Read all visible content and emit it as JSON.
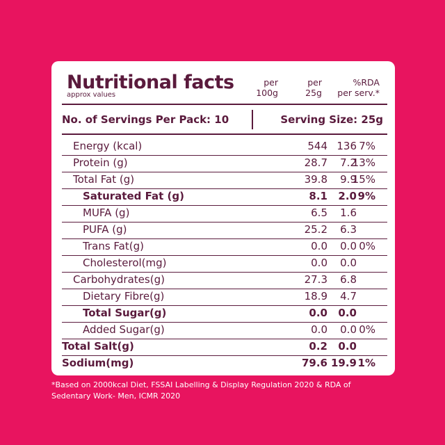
{
  "title": "Nutritional facts",
  "subtitle": "approx values",
  "columns": {
    "per100_line1": "per",
    "per100_line2": "100g",
    "per25_line1": "per",
    "per25_line2": "25g",
    "rda_line1": "%RDA",
    "rda_line2": "per serv.*"
  },
  "servings": {
    "per_pack": "No. of Servings Per Pack: 10",
    "serving_size": "Serving Size: 25g"
  },
  "rows": [
    {
      "name": "Energy (kcal)",
      "per100": "544",
      "per25": "136",
      "rda": "7%"
    },
    {
      "name": "Protein (g)",
      "per100": "28.7",
      "per25": "7.2",
      "rda": "13%"
    },
    {
      "name": "Total Fat (g)",
      "per100": "39.8",
      "per25": "9.9",
      "rda": "15%"
    },
    {
      "name": "Saturated Fat (g)",
      "per100": "8.1",
      "per25": "2.0",
      "rda": "9%"
    },
    {
      "name": "MUFA (g)",
      "per100": "6.5",
      "per25": "1.6",
      "rda": ""
    },
    {
      "name": "PUFA (g)",
      "per100": "25.2",
      "per25": "6.3",
      "rda": ""
    },
    {
      "name": "Trans Fat(g)",
      "per100": "0.0",
      "per25": "0.0",
      "rda": "0%"
    },
    {
      "name": "Cholesterol(mg)",
      "per100": "0.0",
      "per25": "0.0",
      "rda": ""
    },
    {
      "name": "Carbohydrates(g)",
      "per100": "27.3",
      "per25": "6.8",
      "rda": ""
    },
    {
      "name": "Dietary Fibre(g)",
      "per100": "18.9",
      "per25": "4.7",
      "rda": ""
    },
    {
      "name": "Total Sugar(g)",
      "per100": "0.0",
      "per25": "0.0",
      "rda": ""
    },
    {
      "name": "Added Sugar(g)",
      "per100": "0.0",
      "per25": "0.0",
      "rda": "0%"
    },
    {
      "name": "Total Salt(g)",
      "per100": "0.2",
      "per25": "0.0",
      "rda": ""
    },
    {
      "name": "Sodium(mg)",
      "per100": "79.6",
      "per25": "19.9",
      "rda": "1%"
    }
  ],
  "footnote": "*Based on 2000kcal Diet, FSSAI Labelling & Display Regulation 2020 & RDA of Sedentary Work- Men, ICMR 2020",
  "colors": {
    "background": "#e8145f",
    "card": "#ffffff",
    "text": "#5a1a3c"
  }
}
